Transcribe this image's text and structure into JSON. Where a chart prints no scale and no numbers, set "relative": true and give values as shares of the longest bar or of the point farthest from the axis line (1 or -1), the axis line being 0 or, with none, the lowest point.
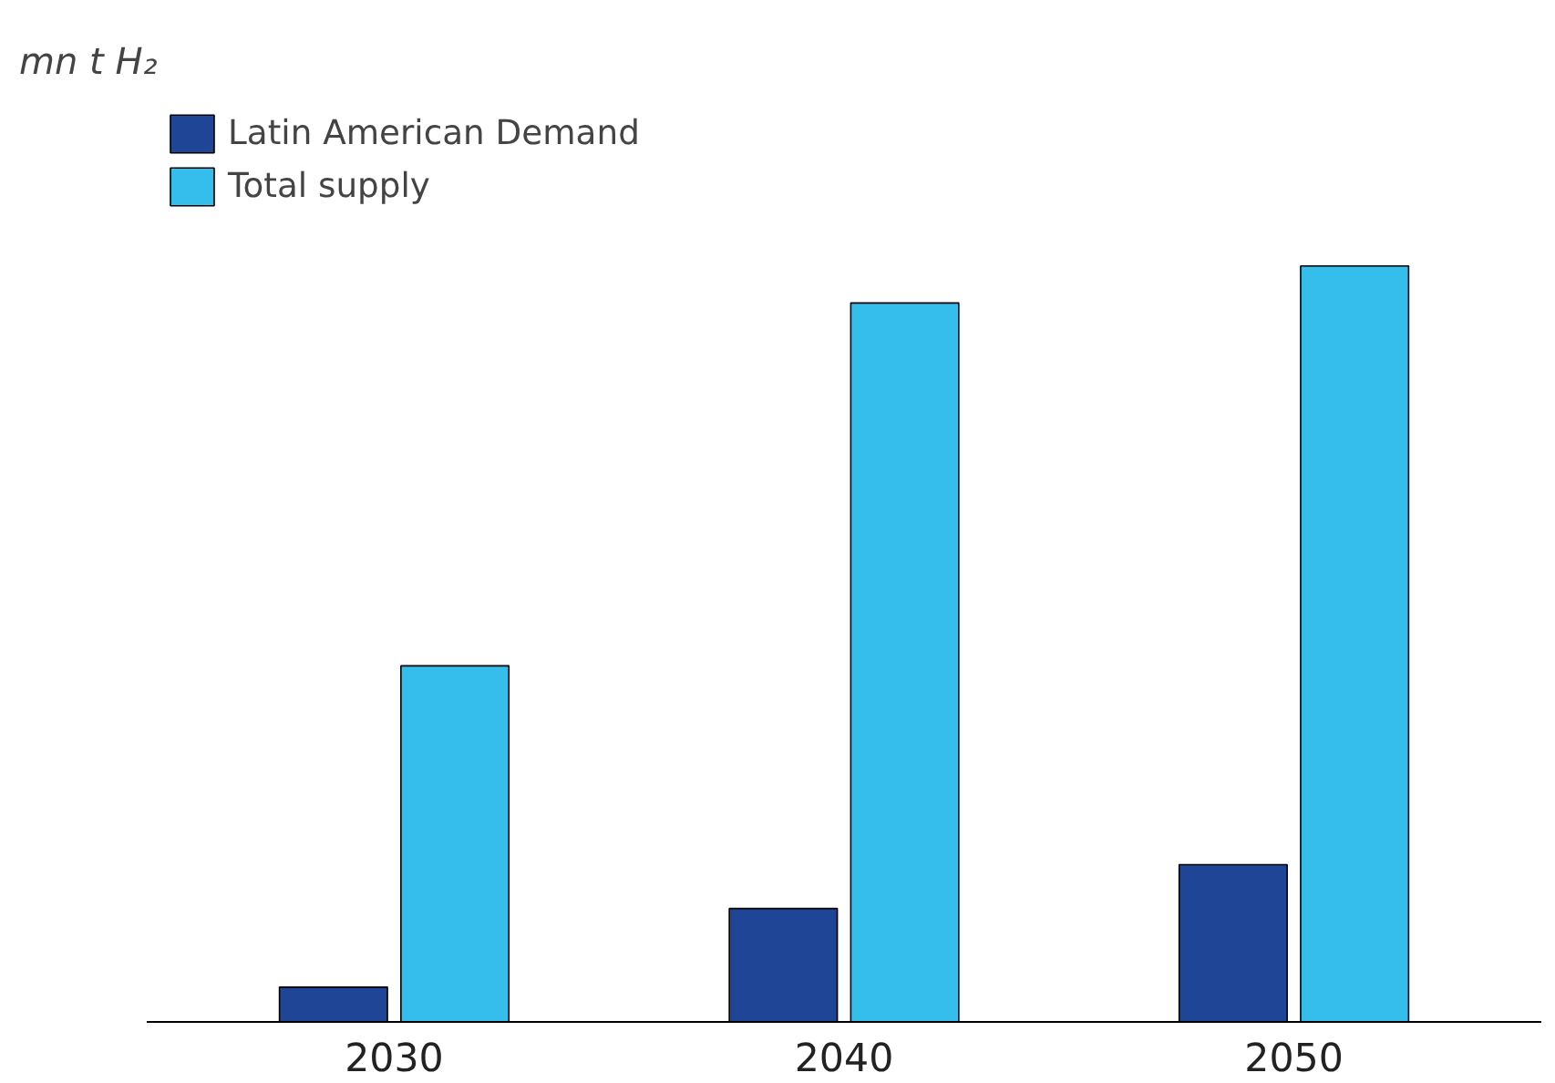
{
  "chart_data": {
    "type": "bar",
    "annotations": [
      "mn t H₂"
    ],
    "categories": [
      "2030",
      "2040",
      "2050"
    ],
    "relative": true,
    "series": [
      {
        "name": "Latin American Demand",
        "color": "#1f4596",
        "values": [
          0.046,
          0.15,
          0.208
        ]
      },
      {
        "name": "Total supply",
        "color": "#35bdeb",
        "values": [
          0.471,
          0.951,
          1
        ]
      }
    ],
    "legend": "top left",
    "grid": false
  }
}
